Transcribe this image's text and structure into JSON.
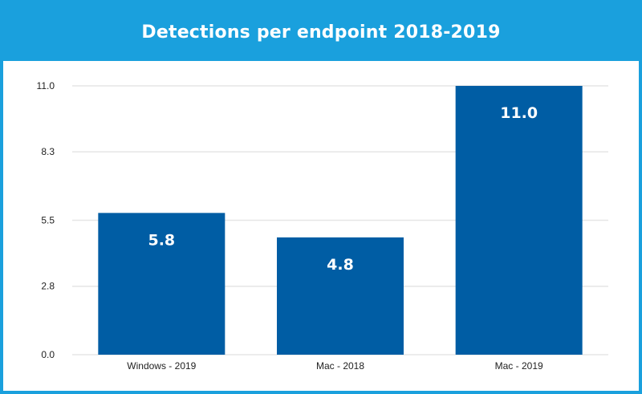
{
  "chart_data": {
    "type": "bar",
    "title": "Detections per endpoint 2018-2019",
    "categories": [
      "Windows - 2019",
      "Mac - 2018",
      "Mac - 2019"
    ],
    "values": [
      5.8,
      4.8,
      11.0
    ],
    "data_labels": [
      "5.8",
      "4.8",
      "11.0"
    ],
    "xlabel": "",
    "ylabel": "",
    "ylim": [
      0,
      11.0
    ],
    "yticks": [
      0.0,
      2.8,
      5.5,
      8.3,
      11.0
    ],
    "ytick_labels": [
      "0.0",
      "2.8",
      "5.5",
      "8.3",
      "11.0"
    ],
    "grid": true,
    "legend": "none"
  },
  "colors": {
    "header": "#1aa0dd",
    "bar": "#005da4",
    "grid": "#e6e6e6"
  }
}
